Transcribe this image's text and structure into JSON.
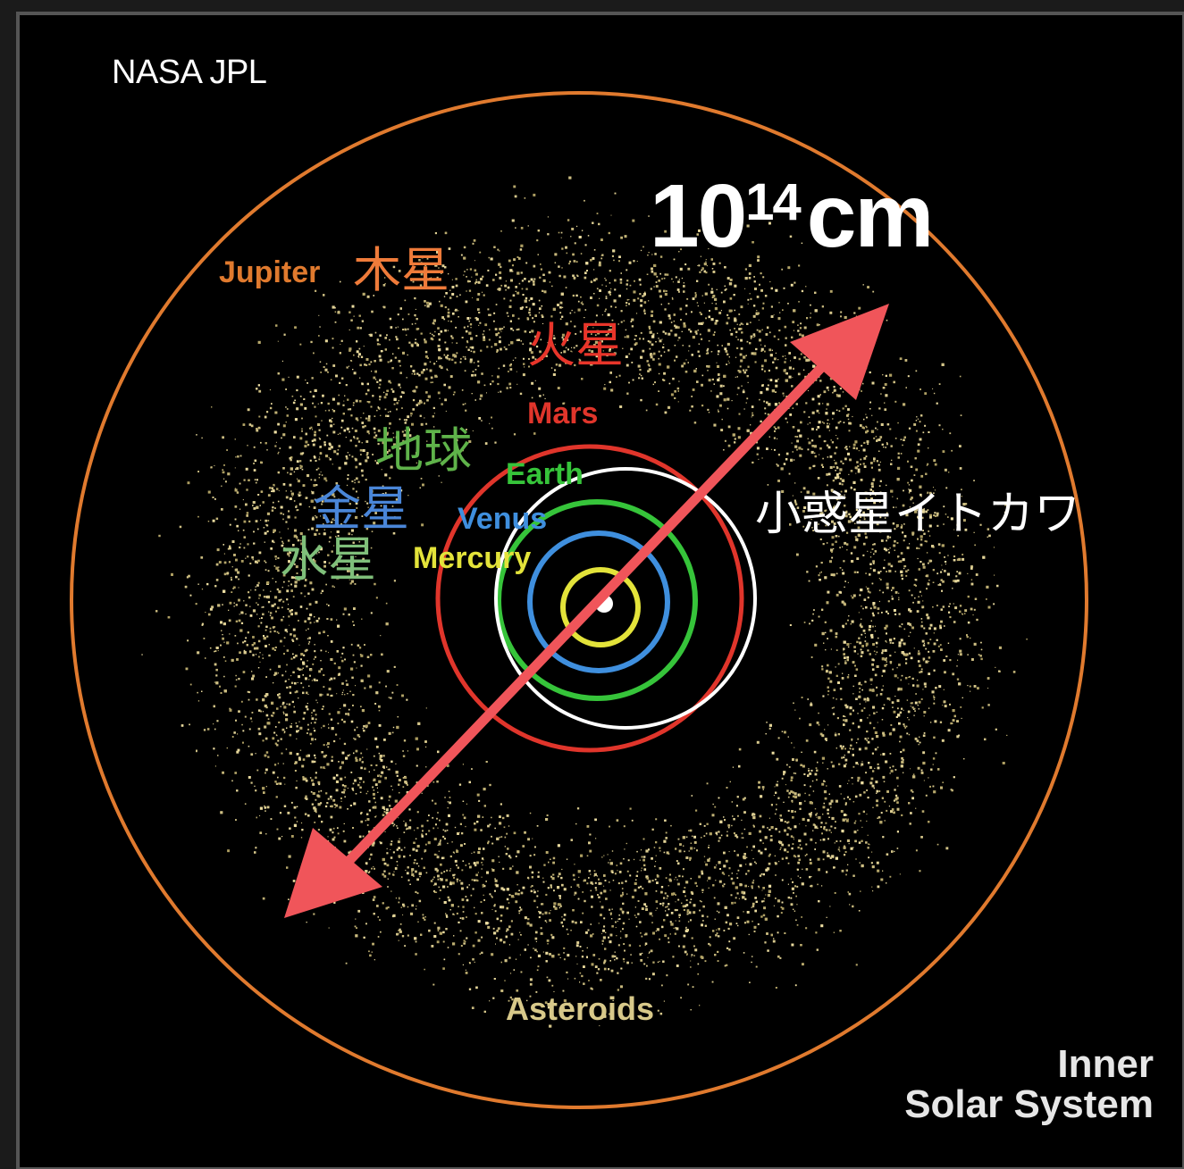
{
  "credit": "NASA JPL",
  "scale": {
    "base": "10",
    "exponent": "14",
    "unit": "cm"
  },
  "planets": {
    "jupiter": {
      "en": "Jupiter",
      "jp": "木星",
      "color": "#e07a2e"
    },
    "mars": {
      "en": "Mars",
      "jp": "火星",
      "color": "#e0352b"
    },
    "earth": {
      "en": "Earth",
      "jp": "地球",
      "color": "#36c43a"
    },
    "venus": {
      "en": "Venus",
      "jp": "金星",
      "color": "#3f8fde"
    },
    "mercury": {
      "en": "Mercury",
      "jp": "水星",
      "color": "#e3e33a"
    }
  },
  "jp_label_colors": {
    "jupiter": "#ef7b3a",
    "mars": "#e8352a",
    "earth": "#5fb34a",
    "venus": "#4a86d8",
    "mercury": "#7fbf7a"
  },
  "itokawa": {
    "label": "小惑星イトカワ",
    "color": "#ffffff"
  },
  "asteroids": {
    "label": "Asteroids",
    "color": "#d8c98a"
  },
  "caption": {
    "line1": "Inner",
    "line2": "Solar System"
  },
  "arrow_color": "#f0555a"
}
